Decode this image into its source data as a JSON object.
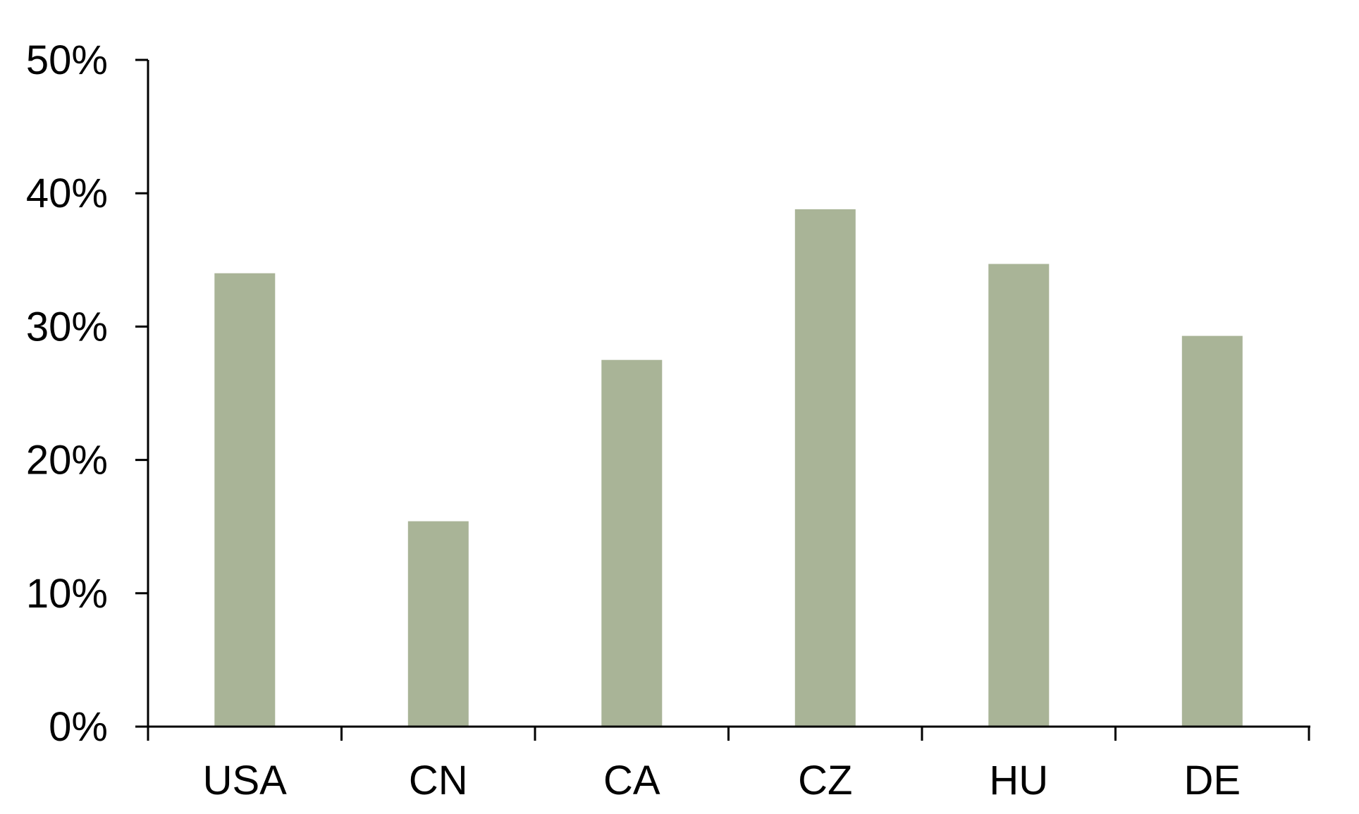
{
  "chart_data": {
    "type": "bar",
    "categories": [
      "USA",
      "CN",
      "CA",
      "CZ",
      "HU",
      "DE"
    ],
    "values": [
      34,
      15.4,
      27.5,
      38.8,
      34.7,
      29.3
    ],
    "y_tick_labels": [
      "0%",
      "10%",
      "20%",
      "30%",
      "40%",
      "50%"
    ],
    "y_ticks": [
      0,
      10,
      20,
      30,
      40,
      50
    ],
    "ylim": [
      0,
      50
    ],
    "unit": "%",
    "bar_color": "#a9b497",
    "axis_color": "#000000",
    "grid": false,
    "legend": "none"
  }
}
